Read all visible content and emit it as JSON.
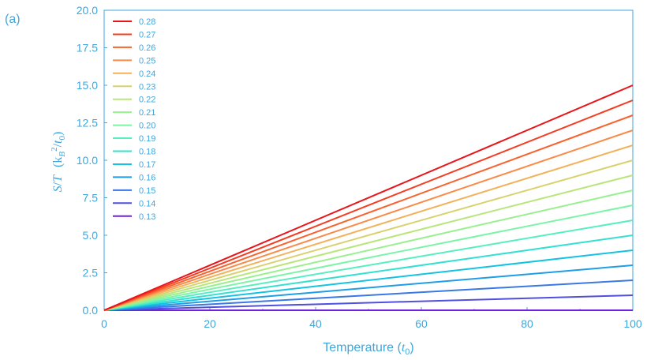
{
  "panel_label": "(a)",
  "colors": {
    "axis": "#3fa6dc",
    "background": "#ffffff"
  },
  "chart_data": {
    "type": "line",
    "xlabel": "Temperature (t0)",
    "ylabel": "S/T (kB²/t0)",
    "xlim": [
      0,
      100
    ],
    "ylim": [
      0,
      20
    ],
    "x_ticks": [
      "0",
      "20",
      "40",
      "60",
      "80",
      "100"
    ],
    "y_ticks": [
      "0.0",
      "2.5",
      "5.0",
      "7.5",
      "10.0",
      "12.5",
      "15.0",
      "17.5",
      "20.0"
    ],
    "grid": false,
    "legend_position": "top-left",
    "x": [
      0,
      100
    ],
    "series": [
      {
        "name": "0.28",
        "color": "#e8151b",
        "values": [
          0,
          15
        ]
      },
      {
        "name": "0.27",
        "color": "#f43d22",
        "values": [
          0,
          14
        ]
      },
      {
        "name": "0.26",
        "color": "#f8622f",
        "values": [
          0,
          13
        ]
      },
      {
        "name": "0.25",
        "color": "#f98b4a",
        "values": [
          0,
          12
        ]
      },
      {
        "name": "0.24",
        "color": "#f2b25b",
        "values": [
          0,
          11
        ]
      },
      {
        "name": "0.23",
        "color": "#d8d26e",
        "values": [
          0,
          10
        ]
      },
      {
        "name": "0.22",
        "color": "#b9e57b",
        "values": [
          0,
          9
        ]
      },
      {
        "name": "0.21",
        "color": "#98f08f",
        "values": [
          0,
          8
        ]
      },
      {
        "name": "0.20",
        "color": "#7af5a7",
        "values": [
          0,
          7
        ]
      },
      {
        "name": "0.19",
        "color": "#55efc0",
        "values": [
          0,
          6
        ]
      },
      {
        "name": "0.18",
        "color": "#33e0d2",
        "values": [
          0,
          5
        ]
      },
      {
        "name": "0.17",
        "color": "#14c3e2",
        "values": [
          0,
          4
        ]
      },
      {
        "name": "0.16",
        "color": "#1f9ee7",
        "values": [
          0,
          3
        ]
      },
      {
        "name": "0.15",
        "color": "#3a78e6",
        "values": [
          0,
          2
        ]
      },
      {
        "name": "0.14",
        "color": "#4f4fe0",
        "values": [
          0,
          1
        ]
      },
      {
        "name": "0.13",
        "color": "#7020e0",
        "values": [
          0,
          0
        ]
      }
    ]
  }
}
